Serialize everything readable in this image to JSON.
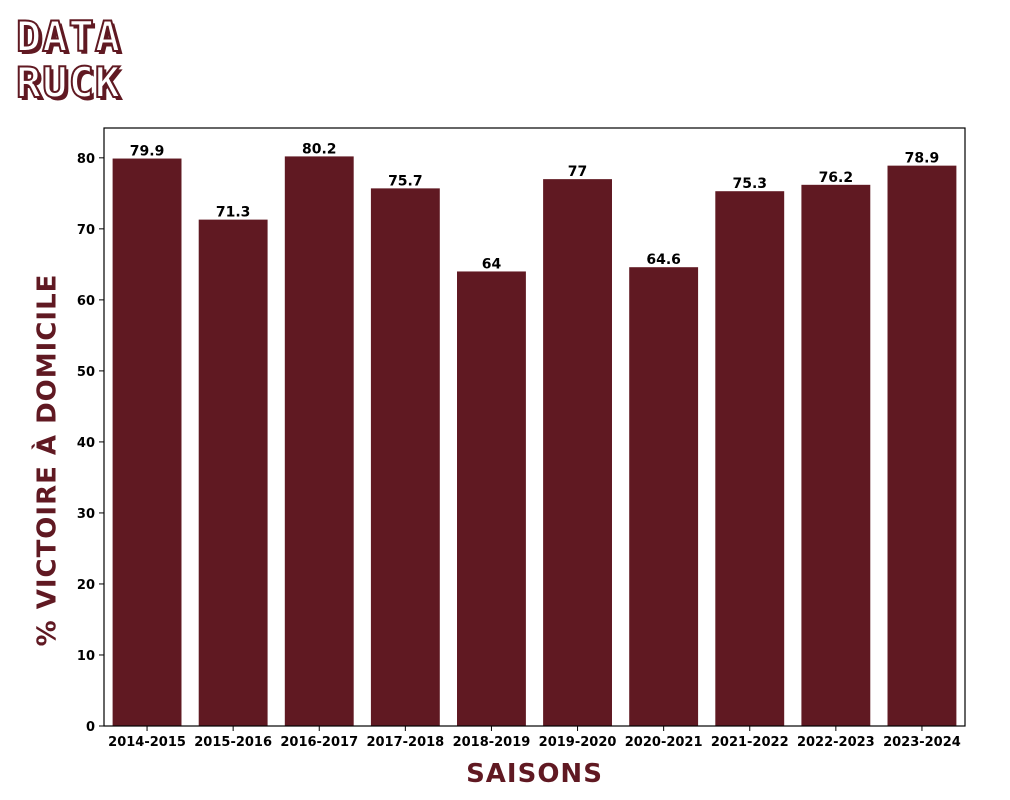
{
  "logo": {
    "line1": "DATA",
    "line2": "RUCK",
    "color": "#601922"
  },
  "chart_data": {
    "type": "bar",
    "title": "",
    "xlabel": "SAISONS",
    "ylabel": "% VICTOIRE À DOMICILE",
    "categories": [
      "2014-2015",
      "2015-2016",
      "2016-2017",
      "2017-2018",
      "2018-2019",
      "2019-2020",
      "2020-2021",
      "2021-2022",
      "2022-2023",
      "2023-2024"
    ],
    "values": [
      79.9,
      71.3,
      80.2,
      75.7,
      64,
      77,
      64.6,
      75.3,
      76.2,
      78.9
    ],
    "value_labels": [
      "79.9",
      "71.3",
      "80.2",
      "75.7",
      "64",
      "77",
      "64.6",
      "75.3",
      "76.2",
      "78.9"
    ],
    "ylim": [
      0,
      84.2
    ],
    "yticks": [
      0,
      10,
      20,
      30,
      40,
      50,
      60,
      70,
      80
    ],
    "grid": false,
    "legend": "none",
    "bar_color": "#601922"
  }
}
